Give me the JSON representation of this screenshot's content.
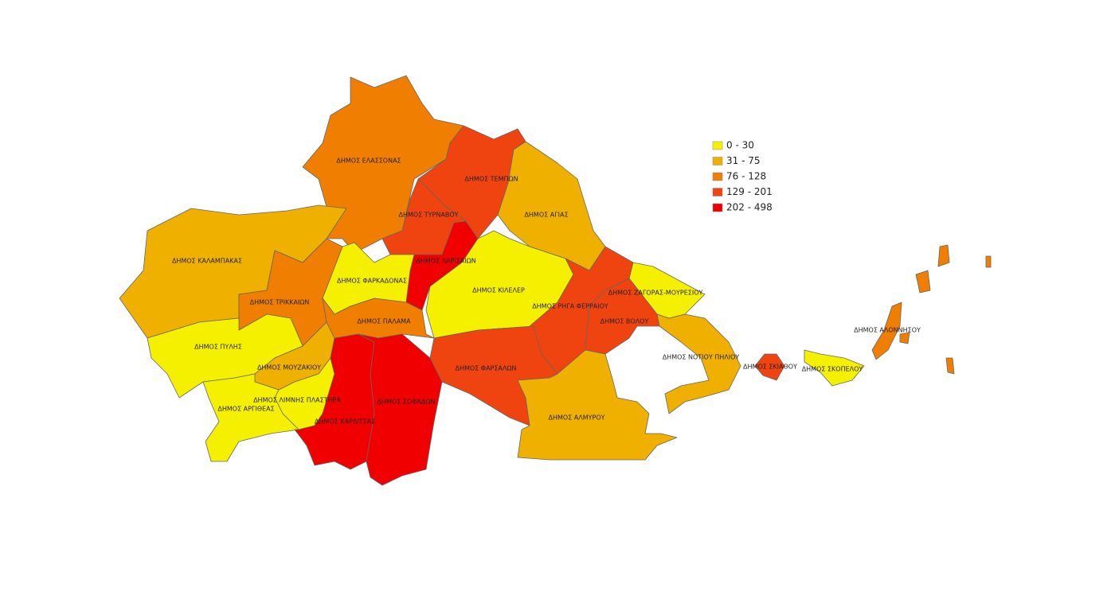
{
  "legend": {
    "items": [
      {
        "label": "0 - 30",
        "color": "#f5f000"
      },
      {
        "label": "31 - 75",
        "color": "#f0b000"
      },
      {
        "label": "76 - 128",
        "color": "#f07e00"
      },
      {
        "label": "129 - 201",
        "color": "#f04410"
      },
      {
        "label": "202 - 498",
        "color": "#f00000"
      }
    ]
  },
  "regions": [
    {
      "name": "ΔΗΜΟΣ ΕΛΑΣΣΟΝΑΣ",
      "class": 2
    },
    {
      "name": "ΔΗΜΟΣ ΤΕΜΠΩΝ",
      "class": 3
    },
    {
      "name": "ΔΗΜΟΣ ΤΥΡΝΑΒΟΥ",
      "class": 3
    },
    {
      "name": "ΔΗΜΟΣ ΑΓΙΑΣ",
      "class": 1
    },
    {
      "name": "ΔΗΜΟΣ ΚΑΛΑΜΠΑΚΑΣ",
      "class": 1
    },
    {
      "name": "ΔΗΜΟΣ ΛΑΡΙΣΑΙΩΝ",
      "class": 4
    },
    {
      "name": "ΔΗΜΟΣ ΦΑΡΚΑΔΟΝΑΣ",
      "class": 0
    },
    {
      "name": "ΔΗΜΟΣ ΚΙΛΕΛΕΡ",
      "class": 0
    },
    {
      "name": "ΔΗΜΟΣ ΤΡΙΚΚΑΙΩΝ",
      "class": 2
    },
    {
      "name": "ΔΗΜΟΣ ΡΗΓΑ ΦΕΡΡΑΙΟΥ",
      "class": 3
    },
    {
      "name": "ΔΗΜΟΣ ΖΑΓΟΡΑΣ-ΜΟΥΡΕΣΙΟΥ",
      "class": 0
    },
    {
      "name": "ΔΗΜΟΣ ΒΟΛΟΥ",
      "class": 3
    },
    {
      "name": "ΔΗΜΟΣ ΠΑΛΑΜΑ",
      "class": 2
    },
    {
      "name": "ΔΗΜΟΣ ΠΥΛΗΣ",
      "class": 0
    },
    {
      "name": "ΔΗΜΟΣ ΜΟΥΖΑΚΙΟΥ",
      "class": 1
    },
    {
      "name": "ΔΗΜΟΣ ΦΑΡΣΑΛΩΝ",
      "class": 3
    },
    {
      "name": "ΔΗΜΟΣ ΝΟΤΙΟΥ ΠΗΛΙΟΥ",
      "class": 1
    },
    {
      "name": "ΔΗΜΟΣ ΣΚΙΑΘΟΥ",
      "class": 3
    },
    {
      "name": "ΔΗΜΟΣ ΣΚΟΠΕΛΟΥ",
      "class": 0
    },
    {
      "name": "ΔΗΜΟΣ ΑΛΟΝΝΗΣΟΥ",
      "class": 2
    },
    {
      "name": "ΔΗΜΟΣ ΛΙΜΝΗΣ ΠΛΑΣΤΗΡΑ",
      "class": 0
    },
    {
      "name": "ΔΗΜΟΣ ΑΡΓΙΘΕΑΣ",
      "class": 0
    },
    {
      "name": "ΔΗΜΟΣ ΚΑΡΔΙΤΣΑΣ",
      "class": 4
    },
    {
      "name": "ΔΗΜΟΣ ΣΟΦΑΔΩΝ",
      "class": 4
    },
    {
      "name": "ΔΗΜΟΣ ΑΛΜΥΡΟΥ",
      "class": 1
    }
  ]
}
